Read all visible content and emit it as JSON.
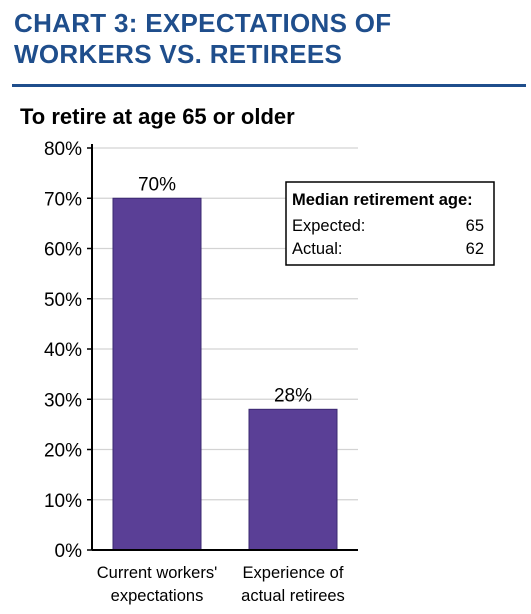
{
  "heading": {
    "line1": "CHART 3: EXPECTATIONS OF",
    "line2": "WORKERS VS. RETIREES"
  },
  "colors": {
    "heading": "#1f4e8c",
    "bar": "#5a3f96",
    "grid": "#d3d3d3",
    "axis": "#000000"
  },
  "chart_data": {
    "type": "bar",
    "title": "To retire at age 65 or older",
    "categories": [
      "Current workers' expectations",
      "Experience of actual retirees"
    ],
    "category_lines": [
      [
        "Current workers'",
        "expectations"
      ],
      [
        "Experience of",
        "actual retirees"
      ]
    ],
    "values": [
      70,
      28
    ],
    "value_labels": [
      "70%",
      "28%"
    ],
    "ylim": [
      0,
      80
    ],
    "yticks": [
      0,
      10,
      20,
      30,
      40,
      50,
      60,
      70,
      80
    ],
    "ytick_labels": [
      "0%",
      "10%",
      "20%",
      "30%",
      "40%",
      "50%",
      "60%",
      "70%",
      "80%"
    ],
    "grid": true,
    "inset_box": {
      "title": "Median retirement age:",
      "rows": [
        {
          "label": "Expected:",
          "value": "65"
        },
        {
          "label": "Actual:",
          "value": "62"
        }
      ]
    }
  }
}
